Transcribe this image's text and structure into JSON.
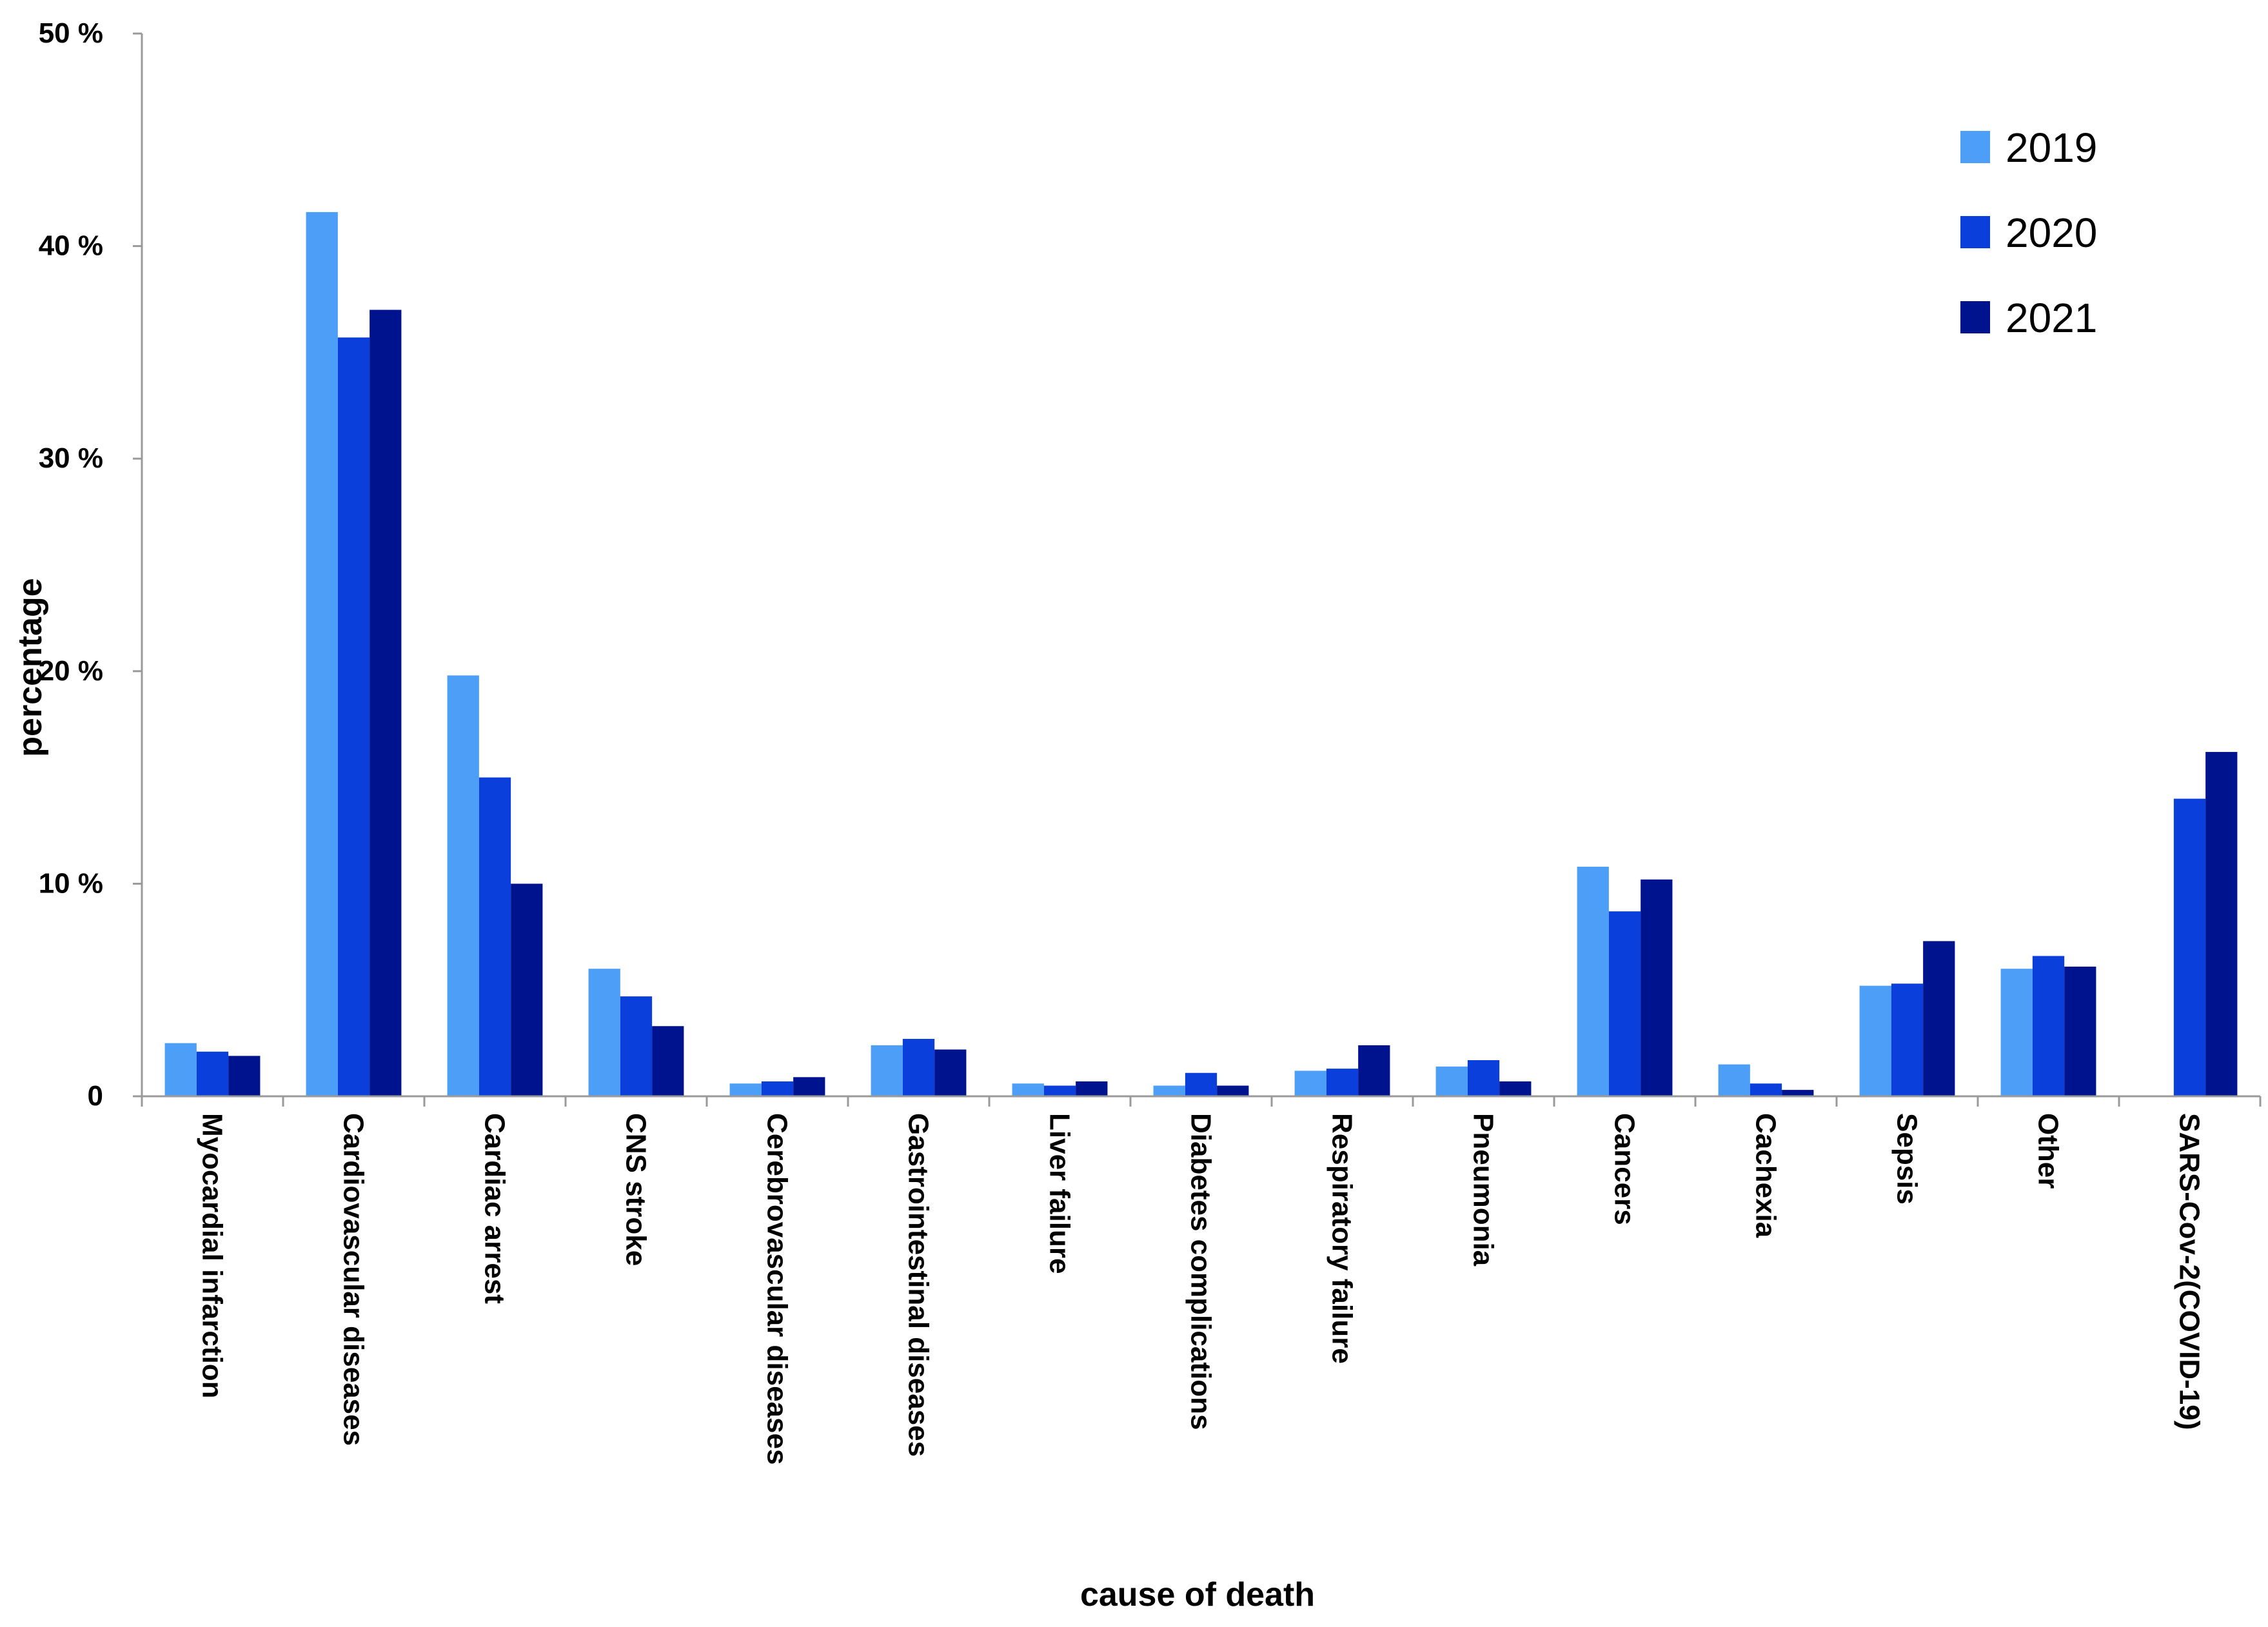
{
  "chart_data": {
    "type": "bar",
    "title": "",
    "xlabel": "cause of death",
    "ylabel": "percentage",
    "ylim": [
      0,
      50
    ],
    "yticks": [
      0,
      10,
      20,
      30,
      40,
      50
    ],
    "ytick_labels": [
      "0",
      "10 %",
      "20 %",
      "30 %",
      "40 %",
      "50 %"
    ],
    "grid": false,
    "legend_position": "top-right",
    "categories": [
      "Myocardial infarction",
      "Cardiovascular diseases",
      "Cardiac arrest",
      "CNS stroke",
      "Cerebrovascular diseases",
      "Gastrointestinal diseases",
      "Liver failure",
      "Diabetes complications",
      "Respiratory failure",
      "Pneumonia",
      "Cancers",
      "Cachexia",
      "Sepsis",
      "Other",
      "SARS-Cov-2(COVID-19)"
    ],
    "series": [
      {
        "name": "2019",
        "color": "#4d9ef7",
        "values": [
          2.5,
          41.6,
          19.8,
          6.0,
          0.6,
          2.4,
          0.6,
          0.5,
          1.2,
          1.4,
          10.8,
          1.5,
          5.2,
          6.0,
          0
        ]
      },
      {
        "name": "2020",
        "color": "#0a3fdc",
        "values": [
          2.1,
          35.7,
          15.0,
          4.7,
          0.7,
          2.7,
          0.5,
          1.1,
          1.3,
          1.7,
          8.7,
          0.6,
          5.3,
          6.6,
          14.0
        ]
      },
      {
        "name": "2021",
        "color": "#00138f",
        "values": [
          1.9,
          37.0,
          10.0,
          3.3,
          0.9,
          2.2,
          0.7,
          0.5,
          2.4,
          0.7,
          10.2,
          0.3,
          7.3,
          6.1,
          16.2
        ]
      }
    ]
  }
}
